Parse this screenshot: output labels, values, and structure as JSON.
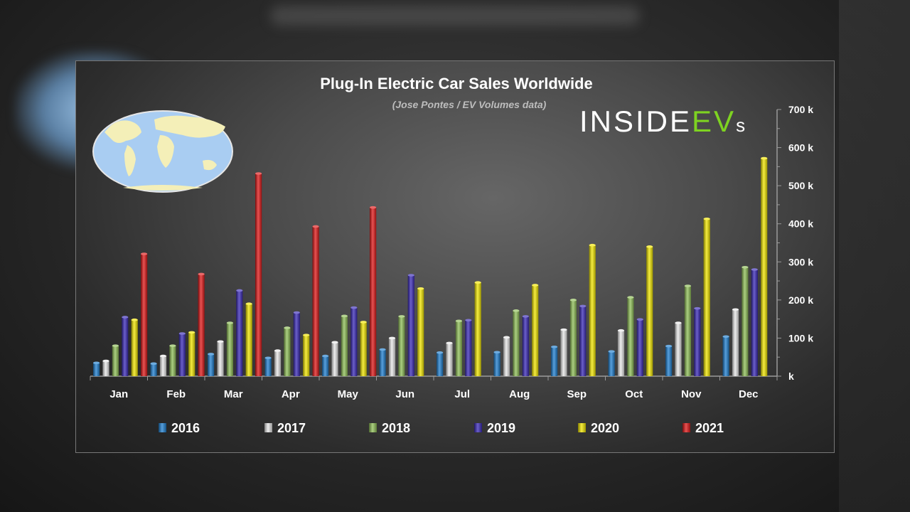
{
  "chart_data": {
    "type": "bar",
    "title": "Plug-In Electric Car Sales Worldwide",
    "subtitle": "(Jose Pontes / EV Volumes data)",
    "brand": {
      "part1": "INSIDE",
      "part2": "EV",
      "part3": "s"
    },
    "categories": [
      "Jan",
      "Feb",
      "Mar",
      "Apr",
      "May",
      "Jun",
      "Jul",
      "Aug",
      "Sep",
      "Oct",
      "Nov",
      "Dec"
    ],
    "ylim": [
      0,
      700
    ],
    "yticks": [
      0,
      100,
      200,
      300,
      400,
      500,
      600,
      700
    ],
    "ytick_labels": [
      "k",
      "100 k",
      "200 k",
      "300 k",
      "400 k",
      "500 k",
      "600 k",
      "700 k"
    ],
    "legend_position": "bottom",
    "series": [
      {
        "name": "2016",
        "color": "#1f7fd0",
        "values": [
          35,
          33,
          58,
          48,
          53,
          70,
          62,
          63,
          77,
          65,
          79,
          104
        ]
      },
      {
        "name": "2017",
        "color": "#e8e8e8",
        "values": [
          40,
          53,
          91,
          67,
          89,
          100,
          87,
          102,
          122,
          120,
          140,
          175
        ]
      },
      {
        "name": "2018",
        "color": "#8fbf57",
        "values": [
          80,
          80,
          140,
          127,
          158,
          157,
          145,
          172,
          200,
          207,
          237,
          286
        ]
      },
      {
        "name": "2019",
        "color": "#3a2ab8",
        "values": [
          155,
          112,
          225,
          167,
          180,
          265,
          147,
          157,
          184,
          149,
          178,
          280
        ]
      },
      {
        "name": "2020",
        "color": "#f2e600",
        "values": [
          148,
          115,
          190,
          108,
          142,
          230,
          246,
          239,
          344,
          340,
          413,
          572
        ]
      },
      {
        "name": "2021",
        "color": "#e01818",
        "values": [
          321,
          268,
          532,
          393,
          443,
          null,
          null,
          null,
          null,
          null,
          null,
          null
        ]
      }
    ]
  }
}
